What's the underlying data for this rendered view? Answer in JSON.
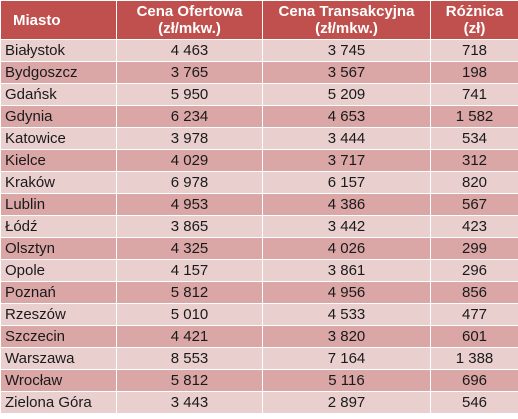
{
  "table": {
    "headers": [
      {
        "line1": "Miasto",
        "line2": ""
      },
      {
        "line1": "Cena Ofertowa",
        "line2": "(zł/mkw.)"
      },
      {
        "line1": "Cena Transakcyjna",
        "line2": "(zł/mkw.)"
      },
      {
        "line1": "Różnica",
        "line2": "(zł)"
      }
    ],
    "rows": [
      [
        "Białystok",
        "4 463",
        "3 745",
        "718"
      ],
      [
        "Bydgoszcz",
        "3 765",
        "3 567",
        "198"
      ],
      [
        "Gdańsk",
        "5 950",
        "5 209",
        "741"
      ],
      [
        "Gdynia",
        "6 234",
        "4 653",
        "1 582"
      ],
      [
        "Katowice",
        "3 978",
        "3 444",
        "534"
      ],
      [
        "Kielce",
        "4 029",
        "3 717",
        "312"
      ],
      [
        "Kraków",
        "6 978",
        "6 157",
        "820"
      ],
      [
        "Lublin",
        "4 953",
        "4 386",
        "567"
      ],
      [
        "Łódź",
        "3 865",
        "3 442",
        "423"
      ],
      [
        "Olsztyn",
        "4 325",
        "4 026",
        "299"
      ],
      [
        "Opole",
        "4 157",
        "3 861",
        "296"
      ],
      [
        "Poznań",
        "5 812",
        "4 956",
        "856"
      ],
      [
        "Rzeszów",
        "5 010",
        "4 533",
        "477"
      ],
      [
        "Szczecin",
        "4 421",
        "3 820",
        "601"
      ],
      [
        "Warszawa",
        "8 553",
        "7 164",
        "1 388"
      ],
      [
        "Wrocław",
        "5 812",
        "5 116",
        "696"
      ],
      [
        "Zielona Góra",
        "3 443",
        "2 897",
        "546"
      ]
    ]
  },
  "colors": {
    "header_bg": "#c0504d",
    "row_light": "#eacfcf",
    "row_dark": "#dba6a6"
  }
}
